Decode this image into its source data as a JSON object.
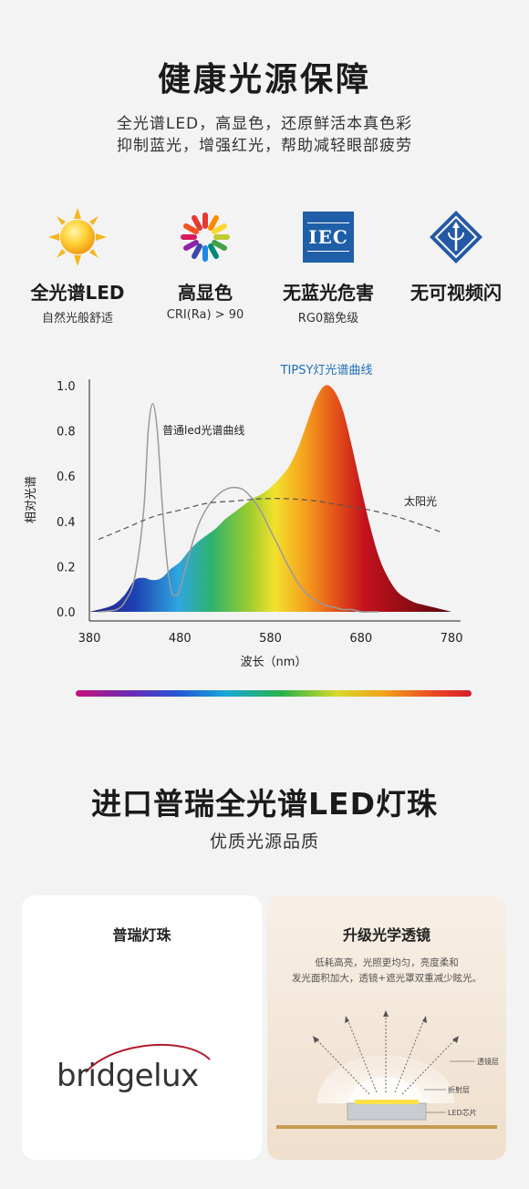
{
  "header": {
    "title": "健康光源保障",
    "line1": "全光谱LED，高显色，还原鲜活本真色彩",
    "line2": "抑制蓝光，增强红光，帮助减轻眼部疲劳"
  },
  "features": [
    {
      "icon": "sun-icon",
      "label": "全光谱LED",
      "sub": "自然光般舒适"
    },
    {
      "icon": "color-wheel-icon",
      "label": "高显色",
      "sub": "CRI(Ra) > 90"
    },
    {
      "icon": "iec-logo-icon",
      "label": "无蓝光危害",
      "sub": "RG0豁免级",
      "logo_text": "IEC"
    },
    {
      "icon": "flicker-free-icon",
      "label": "无可视频闪",
      "sub": ""
    }
  ],
  "chart_data": {
    "type": "area",
    "xlabel": "波长（nm）",
    "ylabel": "相对光谱",
    "xlim": [
      380,
      790
    ],
    "ylim": [
      0,
      1.0
    ],
    "x_ticks": [
      "380",
      "480",
      "580",
      "680",
      "780"
    ],
    "y_ticks": [
      "0.0",
      "0.2",
      "0.4",
      "0.6",
      "0.8",
      "1.0"
    ],
    "series": [
      {
        "name": "TIPSY灯光谱曲线",
        "x": [
          380,
          400,
          410,
          420,
          430,
          440,
          450,
          460,
          470,
          480,
          490,
          500,
          510,
          520,
          530,
          540,
          550,
          560,
          570,
          580,
          590,
          600,
          610,
          620,
          630,
          640,
          650,
          660,
          670,
          680,
          690,
          700,
          710,
          720,
          730,
          740,
          750,
          760,
          770,
          780
        ],
        "y": [
          0.0,
          0.02,
          0.04,
          0.08,
          0.14,
          0.15,
          0.14,
          0.15,
          0.19,
          0.22,
          0.27,
          0.31,
          0.34,
          0.37,
          0.41,
          0.44,
          0.47,
          0.5,
          0.52,
          0.55,
          0.59,
          0.64,
          0.72,
          0.83,
          0.94,
          1.0,
          0.98,
          0.89,
          0.73,
          0.55,
          0.38,
          0.24,
          0.15,
          0.09,
          0.06,
          0.04,
          0.03,
          0.02,
          0.01,
          0.0
        ]
      },
      {
        "name": "普通led光谱曲线",
        "x": [
          390,
          410,
          420,
          430,
          440,
          445,
          450,
          455,
          460,
          465,
          470,
          475,
          480,
          490,
          500,
          510,
          520,
          530,
          540,
          550,
          560,
          570,
          580,
          590,
          600,
          610,
          620,
          630,
          640,
          650,
          660,
          670,
          680,
          690,
          700
        ],
        "y": [
          0.0,
          0.01,
          0.05,
          0.15,
          0.45,
          0.8,
          0.92,
          0.8,
          0.5,
          0.25,
          0.1,
          0.07,
          0.1,
          0.25,
          0.38,
          0.46,
          0.51,
          0.54,
          0.55,
          0.54,
          0.5,
          0.44,
          0.36,
          0.28,
          0.2,
          0.13,
          0.08,
          0.05,
          0.03,
          0.02,
          0.01,
          0.01,
          0.0,
          0.0,
          0.0
        ]
      },
      {
        "name": "太阳光",
        "x": [
          390,
          420,
          450,
          480,
          510,
          540,
          570,
          600,
          630,
          660,
          690,
          720,
          750,
          770
        ],
        "y": [
          0.32,
          0.37,
          0.42,
          0.45,
          0.48,
          0.49,
          0.5,
          0.5,
          0.49,
          0.47,
          0.45,
          0.42,
          0.38,
          0.35
        ]
      }
    ]
  },
  "section2": {
    "title": "进口普瑞全光谱LED灯珠",
    "subtitle": "优质光源品质"
  },
  "cards": {
    "left": {
      "title": "普瑞灯珠",
      "logo": "bridgelux"
    },
    "right": {
      "title": "升级光学透镜",
      "desc1": "低耗高亮，光照更均匀，亮度柔和",
      "desc2": "发光面积加大，透镜+遮光罩双重减少眩光。",
      "labels": [
        "透镜层",
        "折射层",
        "LED芯片"
      ]
    }
  },
  "colors": {
    "title_blue": "#1f6fb8",
    "bridgelux_red": "#b11b2e"
  }
}
